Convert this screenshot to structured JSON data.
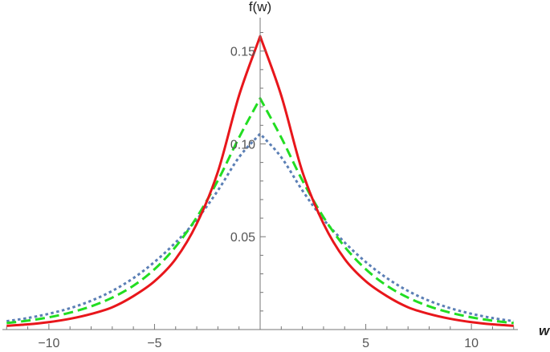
{
  "chart_data": {
    "type": "line",
    "title": "",
    "xlabel": "w",
    "ylabel": "f(w)",
    "xlim": [
      -12.2,
      12.2
    ],
    "ylim": [
      0,
      0.168
    ],
    "grid": false,
    "x_ticks": [
      {
        "value": -10,
        "label": "−10"
      },
      {
        "value": -5,
        "label": "−5"
      },
      {
        "value": 5,
        "label": "5"
      },
      {
        "value": 10,
        "label": "10"
      }
    ],
    "y_ticks": [
      {
        "value": 0.05,
        "label": "0.05"
      },
      {
        "value": 0.1,
        "label": "0.10"
      },
      {
        "value": 0.15,
        "label": "0.15"
      }
    ],
    "x": [
      -12,
      -11,
      -10,
      -9,
      -8,
      -7,
      -6,
      -5,
      -4,
      -3,
      -2,
      -1,
      0,
      1,
      2,
      3,
      4,
      5,
      6,
      7,
      8,
      9,
      10,
      11,
      12
    ],
    "series": [
      {
        "color": "#e8161b",
        "style": "solid",
        "values": [
          0.002,
          0.0028,
          0.004,
          0.0058,
          0.0084,
          0.012,
          0.018,
          0.026,
          0.038,
          0.057,
          0.085,
          0.126,
          0.158,
          0.126,
          0.085,
          0.057,
          0.038,
          0.026,
          0.018,
          0.012,
          0.0084,
          0.0058,
          0.004,
          0.0028,
          0.002
        ]
      },
      {
        "color": "#22dd22",
        "style": "dashed",
        "values": [
          0.0035,
          0.0048,
          0.0066,
          0.0091,
          0.0125,
          0.0172,
          0.0236,
          0.0325,
          0.0446,
          0.0605,
          0.0803,
          0.1034,
          0.1245,
          0.1034,
          0.0803,
          0.0605,
          0.0446,
          0.0325,
          0.0236,
          0.0172,
          0.0125,
          0.0091,
          0.0066,
          0.0048,
          0.0035
        ]
      },
      {
        "color": "#5b7fb5",
        "style": "dotted",
        "values": [
          0.0045,
          0.0062,
          0.0085,
          0.0115,
          0.0155,
          0.0208,
          0.0277,
          0.0364,
          0.0469,
          0.0593,
          0.0749,
          0.0928,
          0.1055,
          0.0928,
          0.0749,
          0.0593,
          0.0469,
          0.0364,
          0.0277,
          0.0208,
          0.0155,
          0.0115,
          0.0085,
          0.0062,
          0.0045
        ]
      }
    ]
  }
}
